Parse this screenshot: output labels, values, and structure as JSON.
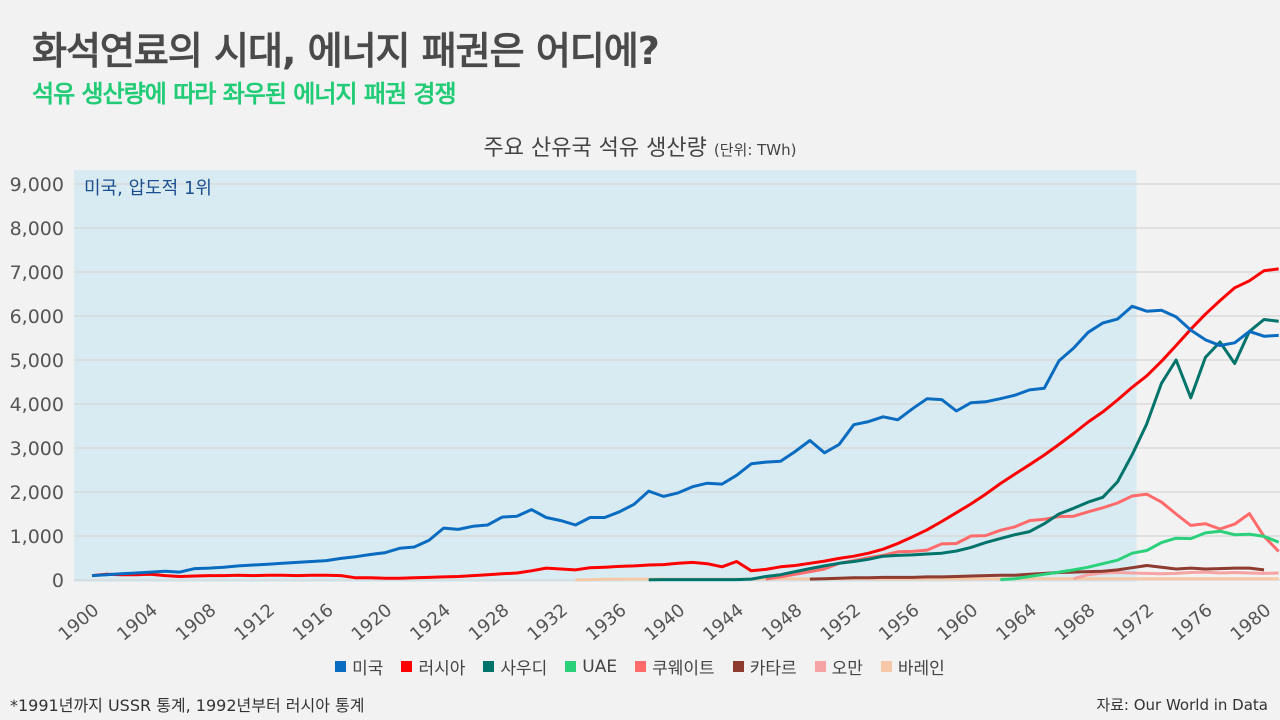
{
  "header": {
    "title": "화석연료의 시대, 에너지 패권은 어디에?",
    "subtitle": "석유 생산량에 따라 좌우된 에너지 패권 경쟁"
  },
  "footnote": "*1991년까지 USSR 통계, 1992년부터 러시아 통계",
  "source": "자료: Our World in Data",
  "chart_data": {
    "type": "line",
    "title": "주요 산유국 석유 생산량",
    "unit": "(단위: TWh)",
    "xlabel": "",
    "ylabel": "",
    "ylim": [
      0,
      9000
    ],
    "xlim": [
      1900,
      1981
    ],
    "yticks": [
      0,
      1000,
      2000,
      3000,
      4000,
      5000,
      6000,
      7000,
      8000,
      9000
    ],
    "ytick_labels": [
      "0",
      "1,000",
      "2,000",
      "3,000",
      "4,000",
      "5,000",
      "6,000",
      "7,000",
      "8,000",
      "9,000"
    ],
    "xticks": [
      1900,
      1904,
      1908,
      1912,
      1916,
      1920,
      1924,
      1928,
      1932,
      1936,
      1940,
      1944,
      1948,
      1952,
      1956,
      1960,
      1964,
      1968,
      1972,
      1976,
      1980
    ],
    "grid": true,
    "legend_position": "bottom",
    "highlight": {
      "from": 1899,
      "to": 1971.3,
      "label": "미국, 압도적 1위",
      "color": "#d9ebf2"
    },
    "series": [
      {
        "name": "미국",
        "color": "#0a6cc0",
        "start": 1900,
        "values": [
          100,
          120,
          140,
          160,
          180,
          200,
          180,
          260,
          270,
          290,
          320,
          340,
          360,
          380,
          400,
          420,
          440,
          490,
          530,
          580,
          620,
          720,
          750,
          900,
          1180,
          1150,
          1220,
          1250,
          1430,
          1450,
          1600,
          1420,
          1350,
          1250,
          1420,
          1420,
          1550,
          1720,
          2020,
          1900,
          1980,
          2120,
          2200,
          2180,
          2380,
          2640,
          2680,
          2700,
          2920,
          3170,
          2890,
          3080,
          3530,
          3600,
          3710,
          3640,
          3890,
          4120,
          4100,
          3840,
          4030,
          4050,
          4120,
          4200,
          4320,
          4360,
          4980,
          5270,
          5630,
          5840,
          5930,
          6220,
          6110,
          6130,
          5980,
          5680,
          5460,
          5330,
          5390,
          5650,
          5540,
          5560
        ]
      },
      {
        "name": "러시아",
        "color": "#ff0000",
        "start": 1900,
        "values": [
          100,
          130,
          120,
          120,
          130,
          100,
          80,
          90,
          100,
          100,
          110,
          100,
          110,
          110,
          100,
          110,
          110,
          100,
          50,
          50,
          40,
          40,
          50,
          60,
          70,
          80,
          100,
          120,
          140,
          160,
          210,
          270,
          250,
          230,
          280,
          290,
          310,
          320,
          340,
          350,
          380,
          400,
          370,
          300,
          420,
          210,
          240,
          300,
          330,
          380,
          430,
          490,
          540,
          610,
          700,
          830,
          980,
          1140,
          1330,
          1530,
          1730,
          1950,
          2190,
          2410,
          2620,
          2840,
          3080,
          3330,
          3590,
          3820,
          4090,
          4380,
          4640,
          4970,
          5330,
          5700,
          6040,
          6350,
          6640,
          6800,
          7030,
          7070
        ]
      },
      {
        "name": "사우디",
        "color": "#00736b",
        "start": 1938,
        "values": [
          5,
          10,
          10,
          10,
          10,
          10,
          10,
          20,
          80,
          120,
          190,
          260,
          320,
          380,
          420,
          470,
          540,
          560,
          570,
          590,
          610,
          660,
          740,
          850,
          940,
          1030,
          1100,
          1280,
          1500,
          1630,
          1770,
          1880,
          2230,
          2850,
          3550,
          4470,
          5000,
          4140,
          5060,
          5410,
          4920,
          5650,
          5920,
          5880
        ]
      },
      {
        "name": "UAE",
        "color": "#2ad17a",
        "start": 1962,
        "values": [
          10,
          30,
          80,
          130,
          180,
          230,
          290,
          370,
          450,
          610,
          670,
          850,
          950,
          940,
          1070,
          1110,
          1030,
          1040,
          990,
          860
        ]
      },
      {
        "name": "쿠웨이트",
        "color": "#ff6b6b",
        "start": 1946,
        "values": [
          20,
          70,
          130,
          190,
          250,
          380,
          440,
          510,
          560,
          640,
          650,
          680,
          820,
          830,
          1000,
          1010,
          1130,
          1210,
          1350,
          1380,
          1440,
          1450,
          1550,
          1640,
          1750,
          1910,
          1950,
          1770,
          1500,
          1240,
          1280,
          1160,
          1270,
          1510,
          990,
          650
        ]
      },
      {
        "name": "카타르",
        "color": "#8e3b30",
        "start": 1949,
        "values": [
          20,
          30,
          40,
          50,
          50,
          60,
          60,
          60,
          70,
          70,
          80,
          90,
          100,
          110,
          110,
          130,
          150,
          170,
          180,
          190,
          200,
          230,
          280,
          330,
          290,
          250,
          270,
          250,
          260,
          270,
          270,
          230
        ]
      },
      {
        "name": "오만",
        "color": "#f5a3a3",
        "start": 1967,
        "values": [
          30,
          120,
          160,
          170,
          160,
          150,
          140,
          150,
          170,
          180,
          160,
          170,
          160,
          150,
          160
        ]
      },
      {
        "name": "바레인",
        "color": "#f6c8a8",
        "start": 1933,
        "values": [
          5,
          10,
          15,
          15,
          20,
          20,
          20,
          20,
          20,
          20,
          20,
          20,
          20,
          25,
          25,
          25,
          25,
          25,
          25,
          25,
          25,
          25,
          25,
          25,
          25,
          25,
          25,
          25,
          25,
          25,
          25,
          30,
          30,
          30,
          30,
          30,
          30,
          30,
          30,
          30,
          30,
          30,
          30,
          30,
          30,
          30,
          30,
          30,
          30
        ]
      }
    ]
  }
}
